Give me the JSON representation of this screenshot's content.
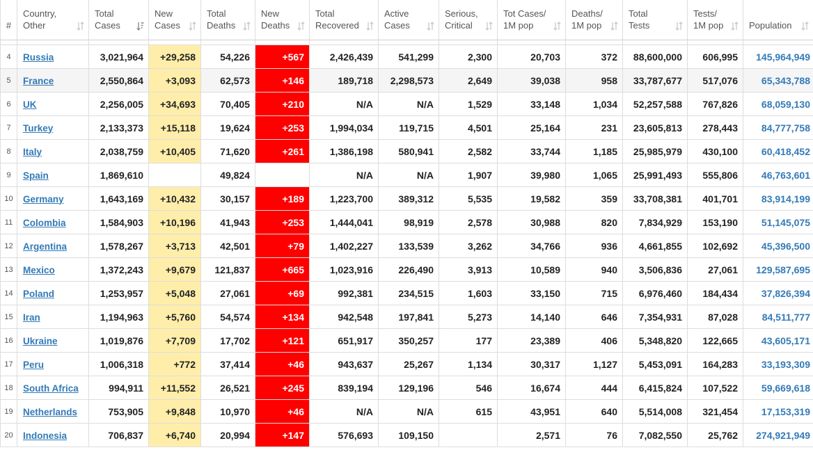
{
  "colors": {
    "grid_line": "#DDDDDD",
    "header_text": "#555555",
    "link": "#337AB7",
    "new_cases_bg": "#FFEEAA",
    "new_deaths_bg": "#FF0000",
    "new_deaths_text": "#FFFFFF",
    "hover_row_bg": "#F5F5F5",
    "text": "#222222"
  },
  "table": {
    "columns": [
      {
        "lines": [
          "#"
        ]
      },
      {
        "lines": [
          "Country,",
          "Other"
        ],
        "sort_icon": "sort-icon"
      },
      {
        "lines": [
          "Total",
          "Cases"
        ],
        "sort_icon": "sort-descending-icon"
      },
      {
        "lines": [
          "New",
          "Cases"
        ],
        "sort_icon": "sort-icon"
      },
      {
        "lines": [
          "Total",
          "Deaths"
        ],
        "sort_icon": "sort-icon"
      },
      {
        "lines": [
          "New",
          "Deaths"
        ],
        "sort_icon": "sort-icon"
      },
      {
        "lines": [
          "Total",
          "Recovered"
        ],
        "sort_icon": "sort-icon"
      },
      {
        "lines": [
          "Active",
          "Cases"
        ],
        "sort_icon": "sort-icon"
      },
      {
        "lines": [
          "Serious,",
          "Critical"
        ],
        "sort_icon": "sort-icon"
      },
      {
        "lines": [
          "Tot Cases/",
          "1M pop"
        ],
        "sort_icon": "sort-icon"
      },
      {
        "lines": [
          "Deaths/",
          "1M pop"
        ],
        "sort_icon": "sort-icon"
      },
      {
        "lines": [
          "Total",
          "Tests"
        ],
        "sort_icon": "sort-icon"
      },
      {
        "lines": [
          "Tests/",
          "1M pop"
        ],
        "sort_icon": "sort-icon"
      },
      {
        "lines": [
          "Population"
        ],
        "sort_icon": "sort-icon"
      }
    ],
    "rows": [
      {
        "rank": "4",
        "country": "Russia",
        "total_cases": "3,021,964",
        "new_cases": "+29,258",
        "total_deaths": "54,226",
        "new_deaths": "+567",
        "total_recovered": "2,426,439",
        "active_cases": "541,299",
        "serious_critical": "2,300",
        "cases_per_1m": "20,703",
        "deaths_per_1m": "372",
        "total_tests": "88,600,000",
        "tests_per_1m": "606,995",
        "population": "145,964,949"
      },
      {
        "rank": "5",
        "country": "France",
        "total_cases": "2,550,864",
        "new_cases": "+3,093",
        "total_deaths": "62,573",
        "new_deaths": "+146",
        "total_recovered": "189,718",
        "active_cases": "2,298,573",
        "serious_critical": "2,649",
        "cases_per_1m": "39,038",
        "deaths_per_1m": "958",
        "total_tests": "33,787,677",
        "tests_per_1m": "517,076",
        "population": "65,343,788",
        "hovered": true
      },
      {
        "rank": "6",
        "country": "UK",
        "total_cases": "2,256,005",
        "new_cases": "+34,693",
        "total_deaths": "70,405",
        "new_deaths": "+210",
        "total_recovered": "N/A",
        "active_cases": "N/A",
        "serious_critical": "1,529",
        "cases_per_1m": "33,148",
        "deaths_per_1m": "1,034",
        "total_tests": "52,257,588",
        "tests_per_1m": "767,826",
        "population": "68,059,130"
      },
      {
        "rank": "7",
        "country": "Turkey",
        "total_cases": "2,133,373",
        "new_cases": "+15,118",
        "total_deaths": "19,624",
        "new_deaths": "+253",
        "total_recovered": "1,994,034",
        "active_cases": "119,715",
        "serious_critical": "4,501",
        "cases_per_1m": "25,164",
        "deaths_per_1m": "231",
        "total_tests": "23,605,813",
        "tests_per_1m": "278,443",
        "population": "84,777,758"
      },
      {
        "rank": "8",
        "country": "Italy",
        "total_cases": "2,038,759",
        "new_cases": "+10,405",
        "total_deaths": "71,620",
        "new_deaths": "+261",
        "total_recovered": "1,386,198",
        "active_cases": "580,941",
        "serious_critical": "2,582",
        "cases_per_1m": "33,744",
        "deaths_per_1m": "1,185",
        "total_tests": "25,985,979",
        "tests_per_1m": "430,100",
        "population": "60,418,452"
      },
      {
        "rank": "9",
        "country": "Spain",
        "total_cases": "1,869,610",
        "new_cases": "",
        "total_deaths": "49,824",
        "new_deaths": "",
        "total_recovered": "N/A",
        "active_cases": "N/A",
        "serious_critical": "1,907",
        "cases_per_1m": "39,980",
        "deaths_per_1m": "1,065",
        "total_tests": "25,991,493",
        "tests_per_1m": "555,806",
        "population": "46,763,601"
      },
      {
        "rank": "10",
        "country": "Germany",
        "total_cases": "1,643,169",
        "new_cases": "+10,432",
        "total_deaths": "30,157",
        "new_deaths": "+189",
        "total_recovered": "1,223,700",
        "active_cases": "389,312",
        "serious_critical": "5,535",
        "cases_per_1m": "19,582",
        "deaths_per_1m": "359",
        "total_tests": "33,708,381",
        "tests_per_1m": "401,701",
        "population": "83,914,199"
      },
      {
        "rank": "11",
        "country": "Colombia",
        "total_cases": "1,584,903",
        "new_cases": "+10,196",
        "total_deaths": "41,943",
        "new_deaths": "+253",
        "total_recovered": "1,444,041",
        "active_cases": "98,919",
        "serious_critical": "2,578",
        "cases_per_1m": "30,988",
        "deaths_per_1m": "820",
        "total_tests": "7,834,929",
        "tests_per_1m": "153,190",
        "population": "51,145,075"
      },
      {
        "rank": "12",
        "country": "Argentina",
        "total_cases": "1,578,267",
        "new_cases": "+3,713",
        "total_deaths": "42,501",
        "new_deaths": "+79",
        "total_recovered": "1,402,227",
        "active_cases": "133,539",
        "serious_critical": "3,262",
        "cases_per_1m": "34,766",
        "deaths_per_1m": "936",
        "total_tests": "4,661,855",
        "tests_per_1m": "102,692",
        "population": "45,396,500"
      },
      {
        "rank": "13",
        "country": "Mexico",
        "total_cases": "1,372,243",
        "new_cases": "+9,679",
        "total_deaths": "121,837",
        "new_deaths": "+665",
        "total_recovered": "1,023,916",
        "active_cases": "226,490",
        "serious_critical": "3,913",
        "cases_per_1m": "10,589",
        "deaths_per_1m": "940",
        "total_tests": "3,506,836",
        "tests_per_1m": "27,061",
        "population": "129,587,695"
      },
      {
        "rank": "14",
        "country": "Poland",
        "total_cases": "1,253,957",
        "new_cases": "+5,048",
        "total_deaths": "27,061",
        "new_deaths": "+69",
        "total_recovered": "992,381",
        "active_cases": "234,515",
        "serious_critical": "1,603",
        "cases_per_1m": "33,150",
        "deaths_per_1m": "715",
        "total_tests": "6,976,460",
        "tests_per_1m": "184,434",
        "population": "37,826,394"
      },
      {
        "rank": "15",
        "country": "Iran",
        "total_cases": "1,194,963",
        "new_cases": "+5,760",
        "total_deaths": "54,574",
        "new_deaths": "+134",
        "total_recovered": "942,548",
        "active_cases": "197,841",
        "serious_critical": "5,273",
        "cases_per_1m": "14,140",
        "deaths_per_1m": "646",
        "total_tests": "7,354,931",
        "tests_per_1m": "87,028",
        "population": "84,511,777"
      },
      {
        "rank": "16",
        "country": "Ukraine",
        "total_cases": "1,019,876",
        "new_cases": "+7,709",
        "total_deaths": "17,702",
        "new_deaths": "+121",
        "total_recovered": "651,917",
        "active_cases": "350,257",
        "serious_critical": "177",
        "cases_per_1m": "23,389",
        "deaths_per_1m": "406",
        "total_tests": "5,348,820",
        "tests_per_1m": "122,665",
        "population": "43,605,171"
      },
      {
        "rank": "17",
        "country": "Peru",
        "total_cases": "1,006,318",
        "new_cases": "+772",
        "total_deaths": "37,414",
        "new_deaths": "+46",
        "total_recovered": "943,637",
        "active_cases": "25,267",
        "serious_critical": "1,134",
        "cases_per_1m": "30,317",
        "deaths_per_1m": "1,127",
        "total_tests": "5,453,091",
        "tests_per_1m": "164,283",
        "population": "33,193,309"
      },
      {
        "rank": "18",
        "country": "South Africa",
        "total_cases": "994,911",
        "new_cases": "+11,552",
        "total_deaths": "26,521",
        "new_deaths": "+245",
        "total_recovered": "839,194",
        "active_cases": "129,196",
        "serious_critical": "546",
        "cases_per_1m": "16,674",
        "deaths_per_1m": "444",
        "total_tests": "6,415,824",
        "tests_per_1m": "107,522",
        "population": "59,669,618"
      },
      {
        "rank": "19",
        "country": "Netherlands",
        "total_cases": "753,905",
        "new_cases": "+9,848",
        "total_deaths": "10,970",
        "new_deaths": "+46",
        "total_recovered": "N/A",
        "active_cases": "N/A",
        "serious_critical": "615",
        "cases_per_1m": "43,951",
        "deaths_per_1m": "640",
        "total_tests": "5,514,008",
        "tests_per_1m": "321,454",
        "population": "17,153,319"
      },
      {
        "rank": "20",
        "country": "Indonesia",
        "total_cases": "706,837",
        "new_cases": "+6,740",
        "total_deaths": "20,994",
        "new_deaths": "+147",
        "total_recovered": "576,693",
        "active_cases": "109,150",
        "serious_critical": "",
        "cases_per_1m": "2,571",
        "deaths_per_1m": "76",
        "total_tests": "7,082,550",
        "tests_per_1m": "25,762",
        "population": "274,921,949"
      }
    ]
  }
}
